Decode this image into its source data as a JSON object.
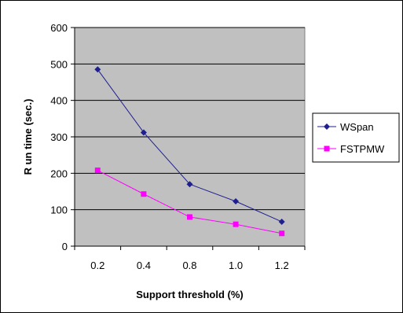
{
  "chart_data": {
    "type": "line",
    "categories": [
      "0.2",
      "0.4",
      "0.8",
      "1.0",
      "1.2"
    ],
    "series": [
      {
        "name": "WSpan",
        "values": [
          485,
          312,
          170,
          123,
          67
        ],
        "color": "#1f1f8f",
        "marker": "diamond"
      },
      {
        "name": "FSTPMW",
        "values": [
          208,
          143,
          80,
          60,
          35
        ],
        "color": "#ff00ff",
        "marker": "square"
      }
    ],
    "title": "",
    "xlabel": "Support threshold (%)",
    "ylabel": "R un time (sec.)",
    "ylim": [
      0,
      600
    ],
    "yticks": [
      0,
      100,
      200,
      300,
      400,
      500,
      600
    ],
    "grid": true,
    "plot_background": "#c0c0c0",
    "legend": "right"
  }
}
